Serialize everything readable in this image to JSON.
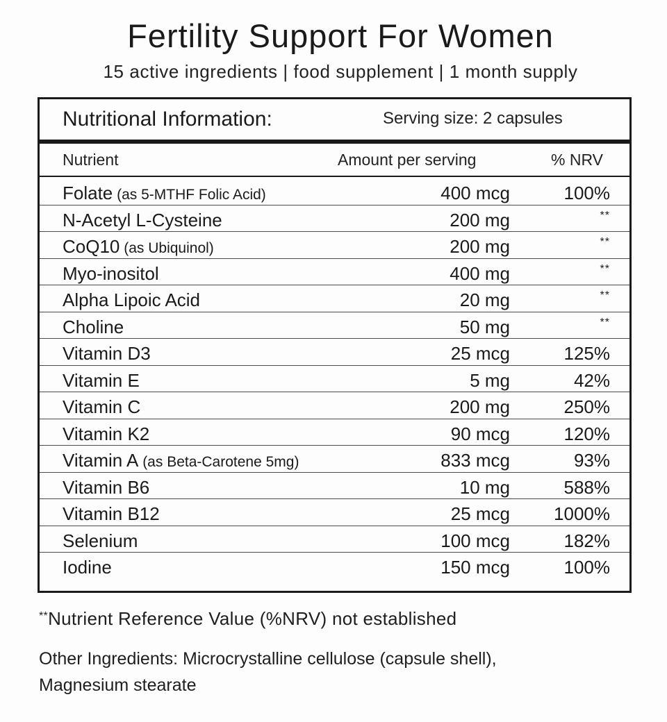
{
  "header": {
    "title": "Fertility Support For Women",
    "subtitle": "15 active ingredients | food supplement | 1 month supply"
  },
  "panel": {
    "info_title": "Nutritional Information:",
    "serving_size": "Serving size: 2 capsules",
    "columns": {
      "nutrient": "Nutrient",
      "amount": "Amount per serving",
      "nrv": "% NRV"
    },
    "rows": [
      {
        "name": "Folate",
        "qualifier": " (as 5-MTHF Folic Acid)",
        "amount": "400 mcg",
        "nrv": "100%"
      },
      {
        "name": "N-Acetyl L-Cysteine",
        "qualifier": "",
        "amount": "200 mg",
        "nrv": "**"
      },
      {
        "name": "CoQ10",
        "qualifier": " (as Ubiquinol)",
        "amount": "200 mg",
        "nrv": "**"
      },
      {
        "name": "Myo-inositol",
        "qualifier": "",
        "amount": "400 mg",
        "nrv": "**"
      },
      {
        "name": "Alpha Lipoic Acid",
        "qualifier": "",
        "amount": "20 mg",
        "nrv": "**"
      },
      {
        "name": "Choline",
        "qualifier": "",
        "amount": "50 mg",
        "nrv": "**"
      },
      {
        "name": "Vitamin D3",
        "qualifier": "",
        "amount": "25 mcg",
        "nrv": "125%"
      },
      {
        "name": "Vitamin E",
        "qualifier": "",
        "amount": "5 mg",
        "nrv": "42%"
      },
      {
        "name": "Vitamin C",
        "qualifier": "",
        "amount": "200 mg",
        "nrv": "250%"
      },
      {
        "name": "Vitamin K2",
        "qualifier": "",
        "amount": "90 mcg",
        "nrv": "120%"
      },
      {
        "name": "Vitamin A",
        "qualifier": " (as Beta-Carotene 5mg)",
        "amount": "833 mcg",
        "nrv": "93%"
      },
      {
        "name": "Vitamin B6",
        "qualifier": "",
        "amount": "10 mg",
        "nrv": "588%"
      },
      {
        "name": "Vitamin B12",
        "qualifier": "",
        "amount": "25 mcg",
        "nrv": "1000%"
      },
      {
        "name": "Selenium",
        "qualifier": "",
        "amount": "100 mcg",
        "nrv": "182%"
      },
      {
        "name": "Iodine",
        "qualifier": "",
        "amount": "150 mcg",
        "nrv": "100%"
      }
    ]
  },
  "footnote": {
    "stars": "**",
    "text": "Nutrient Reference Value (%NRV) not established"
  },
  "other_ingredients": {
    "line1": "Other Ingredients: Microcrystalline cellulose (capsule shell),",
    "line2": "Magnesium stearate"
  }
}
